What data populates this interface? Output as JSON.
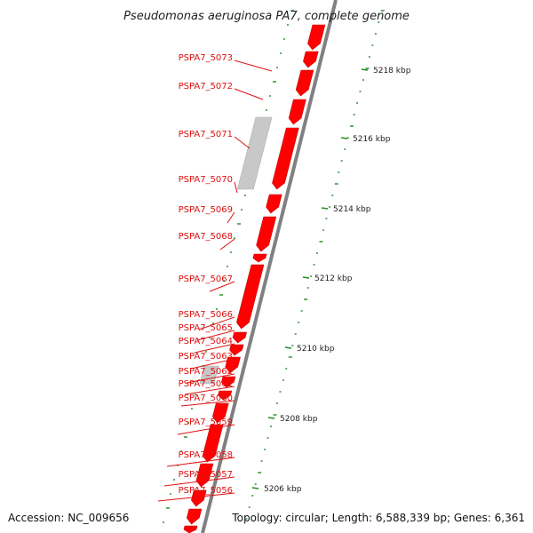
{
  "title": "Pseudomonas aeruginosa PA7, complete genome",
  "footer": {
    "accession": "Accession: NC_009656",
    "topology": "Topology: circular; Length: 6,588,339 bp; Genes: 6,361"
  },
  "colors": {
    "gene_fill": "#ff0000",
    "gene_stroke": "#c80000",
    "label_text": "#e01010",
    "leader_line": "#e01010",
    "backbone": "#808080",
    "non_coding_fill": "#c8c8c8",
    "gc_ticks": "#228b22",
    "text": "#222222"
  },
  "gene_labels": [
    "PSPA7_5073",
    "PSPA7_5072",
    "PSPA7_5071",
    "PSPA7_5070",
    "PSPA7_5069",
    "PSPA7_5068",
    "PSPA7_5067",
    "PSPA7_5066",
    "PSPA7_5065",
    "PSPA7_5064",
    "PSPA7_5063",
    "PSPA7_5062",
    "PSPA7_5061",
    "PSPA7_5060",
    "PSPA7_5059",
    "PSPA7_5058",
    "PSPA7_5057",
    "PSPA7_5056"
  ],
  "scale_labels": [
    "5218 kbp",
    "5216 kbp",
    "5214 kbp",
    "5212 kbp",
    "5210 kbp",
    "5208 kbp",
    "5206 kbp"
  ]
}
